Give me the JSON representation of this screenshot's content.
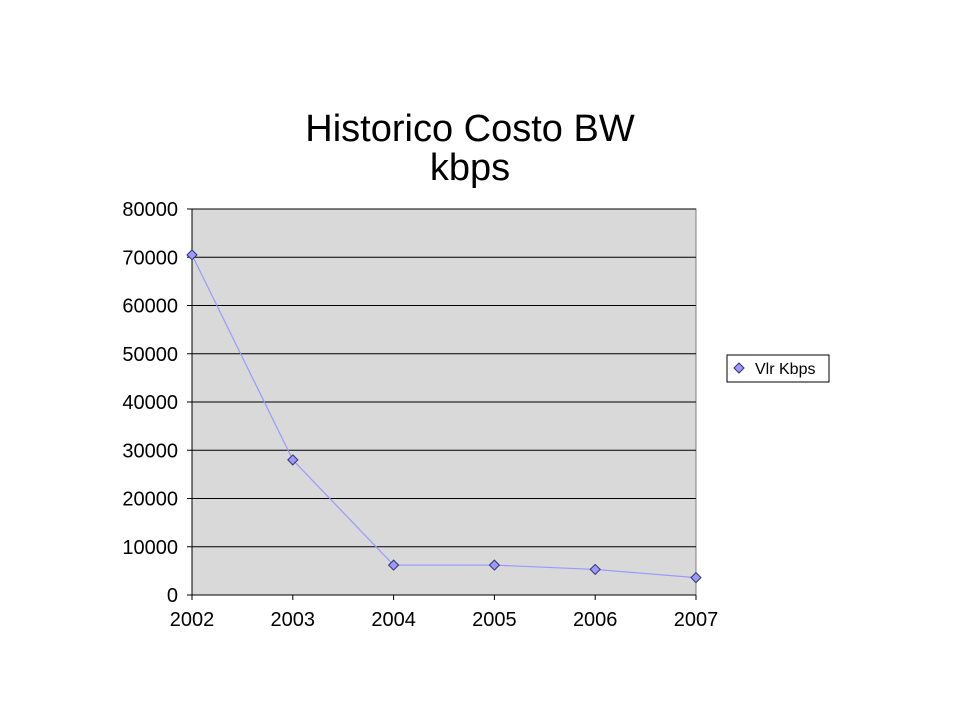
{
  "chart_data": {
    "type": "line",
    "title": [
      "Historico Costo BW",
      "kbps"
    ],
    "xlabel": "",
    "ylabel": "",
    "categories": [
      "2002",
      "2003",
      "2004",
      "2005",
      "2006",
      "2007"
    ],
    "series": [
      {
        "name": "Vlr Kbps",
        "values": [
          70500,
          28000,
          6200,
          6200,
          5300,
          3600
        ],
        "color": "#9999ff",
        "marker": "diamond",
        "marker_color": "#9999ff"
      }
    ],
    "ylim": [
      0,
      80000
    ],
    "yticks": [
      "0",
      "10000",
      "20000",
      "30000",
      "40000",
      "50000",
      "60000",
      "70000",
      "80000"
    ],
    "ytick_values": [
      0,
      10000,
      20000,
      30000,
      40000,
      50000,
      60000,
      70000,
      80000
    ],
    "grid": true,
    "plot_background": "#d9d9d9",
    "legend": "right"
  }
}
